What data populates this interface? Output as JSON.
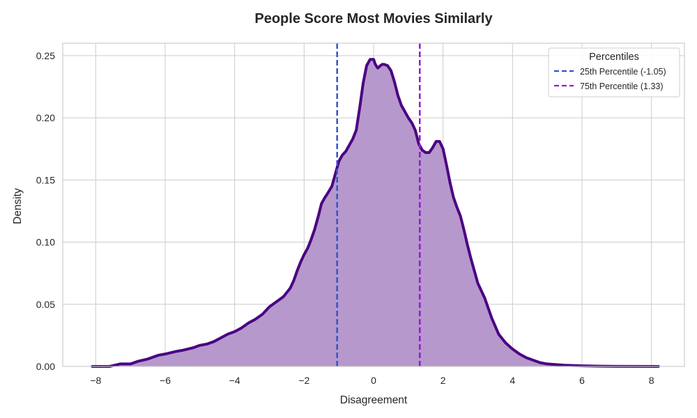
{
  "chart_data": {
    "type": "area",
    "title": "People Score Most Movies Similarly",
    "xlabel": "Disagreement",
    "ylabel": "Density",
    "xlim": [
      -8.95,
      8.95
    ],
    "ylim": [
      0,
      0.26
    ],
    "xticks": [
      -8,
      -6,
      -4,
      -2,
      0,
      2,
      4,
      6,
      8
    ],
    "yticks": [
      0.0,
      0.05,
      0.1,
      0.15,
      0.2,
      0.25
    ],
    "xtick_labels": [
      "−8",
      "−6",
      "−4",
      "−2",
      "0",
      "2",
      "4",
      "6",
      "8"
    ],
    "ytick_labels": [
      "0.00",
      "0.05",
      "0.10",
      "0.15",
      "0.20",
      "0.25"
    ],
    "grid": true,
    "series": [
      {
        "x": [
          -8.1,
          -7.6,
          -7.3,
          -7.0,
          -6.8,
          -6.5,
          -6.2,
          -6.0,
          -5.7,
          -5.5,
          -5.2,
          -5.0,
          -4.8,
          -4.6,
          -4.4,
          -4.2,
          -4.0,
          -3.8,
          -3.6,
          -3.4,
          -3.2,
          -3.0,
          -2.8,
          -2.6,
          -2.4,
          -2.3,
          -2.2,
          -2.1,
          -2.0,
          -1.9,
          -1.8,
          -1.7,
          -1.6,
          -1.5,
          -1.4,
          -1.35,
          -1.2,
          -1.1,
          -1.0,
          -0.9,
          -0.8,
          -0.7,
          -0.6,
          -0.5,
          -0.4,
          -0.3,
          -0.2,
          -0.1,
          0.0,
          0.05,
          0.12,
          0.2,
          0.25,
          0.3,
          0.4,
          0.5,
          0.6,
          0.7,
          0.8,
          0.9,
          1.0,
          1.1,
          1.2,
          1.3,
          1.4,
          1.5,
          1.6,
          1.7,
          1.8,
          1.9,
          2.0,
          2.1,
          2.2,
          2.3,
          2.4,
          2.5,
          2.6,
          2.7,
          2.8,
          3.0,
          3.2,
          3.4,
          3.6,
          3.8,
          4.0,
          4.2,
          4.4,
          4.6,
          4.8,
          5.0,
          5.5,
          6.0,
          6.5,
          7.0,
          8.2
        ],
        "y": [
          0.0,
          0.0,
          0.002,
          0.002,
          0.004,
          0.006,
          0.009,
          0.01,
          0.012,
          0.013,
          0.015,
          0.017,
          0.018,
          0.02,
          0.023,
          0.026,
          0.028,
          0.031,
          0.035,
          0.038,
          0.042,
          0.048,
          0.052,
          0.056,
          0.063,
          0.069,
          0.077,
          0.084,
          0.09,
          0.095,
          0.102,
          0.11,
          0.12,
          0.131,
          0.136,
          0.138,
          0.145,
          0.155,
          0.165,
          0.17,
          0.173,
          0.178,
          0.183,
          0.19,
          0.208,
          0.228,
          0.242,
          0.247,
          0.247,
          0.243,
          0.24,
          0.242,
          0.243,
          0.243,
          0.242,
          0.238,
          0.229,
          0.218,
          0.21,
          0.205,
          0.2,
          0.196,
          0.19,
          0.179,
          0.174,
          0.172,
          0.172,
          0.176,
          0.181,
          0.181,
          0.175,
          0.162,
          0.148,
          0.136,
          0.128,
          0.121,
          0.11,
          0.098,
          0.087,
          0.067,
          0.055,
          0.039,
          0.026,
          0.019,
          0.014,
          0.01,
          0.007,
          0.005,
          0.003,
          0.002,
          0.001,
          0.0005,
          0.0002,
          0.0001,
          0.0
        ]
      }
    ],
    "percentile_lines": [
      {
        "label": "25th Percentile (-1.05)",
        "x": -1.05,
        "color": "#3553c8"
      },
      {
        "label": "75th Percentile (1.33)",
        "x": 1.33,
        "color": "#9418d6"
      }
    ],
    "legend": {
      "title": "Percentiles",
      "placement": "top-right"
    },
    "colors": {
      "fill": "#b698cc",
      "line": "#4b0482",
      "grid": "#cccccc"
    }
  }
}
